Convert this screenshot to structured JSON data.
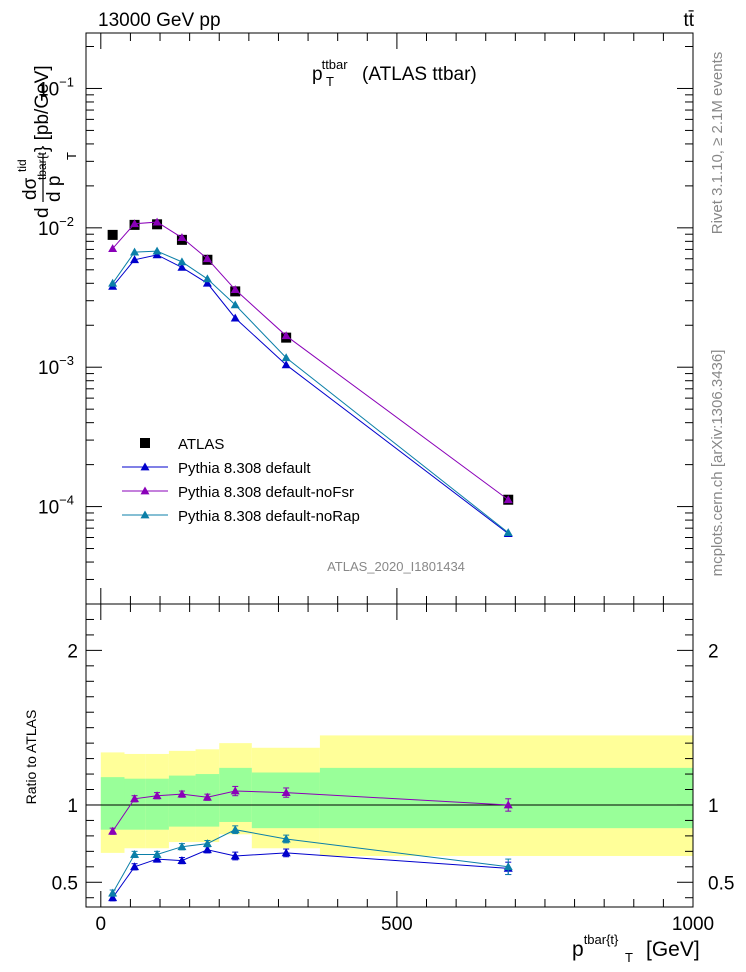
{
  "header": {
    "left": "13000 GeV pp",
    "right": "tt̄"
  },
  "side_labels": {
    "rivet": "Rivet 3.1.10, ≥ 2.1M events",
    "source": "mcplots.cern.ch [arXiv:1306.3436]"
  },
  "chart_data": [
    {
      "type": "scatter",
      "title": "p_T^{ttbar} (ATLAS ttbar)",
      "title_main": "p",
      "title_sup": "ttbar",
      "title_sub": "T",
      "title_rest": "(ATLAS ttbar)",
      "ylabel_text": "d σ^{tid} / d p_T^{tbar{t}} [pb/GeV]",
      "ylabel_parts": {
        "d1": "d",
        "sigma": "dσ",
        "sigma_sup": "tid",
        "frac_d": "d p",
        "frac_sub": "tbar{t",
        "sub_T": "T",
        "unit": "} [pb/GeV]"
      },
      "yscale": "log",
      "ylim": [
        2e-05,
        0.25
      ],
      "xlim": [
        -25,
        1000
      ],
      "yticks": [
        {
          "value": 0.1,
          "base": "10",
          "exp": "−1"
        },
        {
          "value": 0.01,
          "base": "10",
          "exp": "−2"
        },
        {
          "value": 0.001,
          "base": "10",
          "exp": "−3"
        },
        {
          "value": 0.0001,
          "base": "10",
          "exp": "−4"
        }
      ],
      "watermark": "ATLAS_2020_I1801434",
      "legend_position": "lower-left",
      "series": [
        {
          "name": "ATLAS",
          "marker": "square",
          "color": "#000000",
          "x": [
            20,
            57,
            95,
            137,
            180,
            227,
            313,
            688
          ],
          "y": [
            0.0089,
            0.0105,
            0.0106,
            0.0082,
            0.0059,
            0.0035,
            0.00163,
            0.000112
          ]
        },
        {
          "name": "Pythia 8.308 default",
          "marker": "triangle",
          "color": "#0000cc",
          "x": [
            20,
            57,
            95,
            137,
            180,
            227,
            313,
            688
          ],
          "y": [
            0.0038,
            0.0059,
            0.0064,
            0.0052,
            0.004,
            0.00225,
            0.00104,
            6.4e-05
          ]
        },
        {
          "name": "Pythia 8.308 default-noFsr",
          "marker": "triangle",
          "color": "#8a00b8",
          "x": [
            20,
            57,
            95,
            137,
            180,
            227,
            313,
            688
          ],
          "y": [
            0.0071,
            0.0107,
            0.011,
            0.0085,
            0.006,
            0.0036,
            0.00168,
            0.000112
          ]
        },
        {
          "name": "Pythia 8.308 default-noRap",
          "marker": "triangle",
          "color": "#0b7fa8",
          "x": [
            20,
            57,
            95,
            137,
            180,
            227,
            313,
            688
          ],
          "y": [
            0.004,
            0.0067,
            0.0068,
            0.0057,
            0.0043,
            0.0028,
            0.00117,
            6.5e-05
          ]
        }
      ]
    },
    {
      "type": "scatter",
      "ylabel": "Ratio to ATLAS",
      "xlabel_text": "p_T^{tbar{t}} [GeV]",
      "xlabel_parts": {
        "main": "p",
        "sup": "tbar{t}",
        "sub": "T",
        "unit": "[GeV]"
      },
      "xlim": [
        -25,
        1000
      ],
      "ylim": [
        0.34,
        2.3
      ],
      "yticks": [
        0.5,
        1,
        2
      ],
      "ytick_labels": [
        "0.5",
        "1",
        "2"
      ],
      "xticks": [
        0,
        500,
        1000
      ],
      "xtick_labels": [
        "0",
        "500",
        "1000"
      ],
      "reference_line": 1,
      "bands": {
        "bins": [
          [
            0,
            40
          ],
          [
            40,
            75
          ],
          [
            75,
            115
          ],
          [
            115,
            160
          ],
          [
            160,
            200
          ],
          [
            200,
            255
          ],
          [
            255,
            370
          ],
          [
            370,
            1000
          ]
        ],
        "yellow_lo": [
          0.69,
          0.72,
          0.72,
          0.76,
          0.76,
          0.81,
          0.72,
          0.67
        ],
        "yellow_hi": [
          1.34,
          1.33,
          1.33,
          1.35,
          1.36,
          1.4,
          1.37,
          1.45
        ],
        "green_lo": [
          0.84,
          0.84,
          0.84,
          0.86,
          0.86,
          0.89,
          0.85,
          0.85
        ],
        "green_hi": [
          1.18,
          1.17,
          1.17,
          1.19,
          1.2,
          1.24,
          1.21,
          1.24
        ]
      },
      "series": [
        {
          "name": "Pythia 8.308 default",
          "color": "#0000cc",
          "x": [
            20,
            57,
            95,
            137,
            180,
            227,
            313,
            688
          ],
          "y": [
            0.4,
            0.6,
            0.65,
            0.64,
            0.71,
            0.67,
            0.69,
            0.59
          ],
          "err": [
            0.02,
            0.02,
            0.02,
            0.02,
            0.02,
            0.025,
            0.025,
            0.04
          ]
        },
        {
          "name": "Pythia 8.308 default-noFsr",
          "color": "#8a00b8",
          "x": [
            20,
            57,
            95,
            137,
            180,
            227,
            313,
            688
          ],
          "y": [
            0.83,
            1.04,
            1.06,
            1.07,
            1.05,
            1.09,
            1.08,
            1.0
          ],
          "err": [
            0.02,
            0.02,
            0.02,
            0.02,
            0.02,
            0.03,
            0.03,
            0.04
          ]
        },
        {
          "name": "Pythia 8.308 default-noRap",
          "color": "#0b7fa8",
          "x": [
            20,
            57,
            95,
            137,
            180,
            227,
            313,
            688
          ],
          "y": [
            0.43,
            0.68,
            0.68,
            0.73,
            0.75,
            0.84,
            0.78,
            0.6
          ],
          "err": [
            0.02,
            0.02,
            0.02,
            0.02,
            0.02,
            0.025,
            0.025,
            0.05
          ]
        }
      ]
    }
  ]
}
